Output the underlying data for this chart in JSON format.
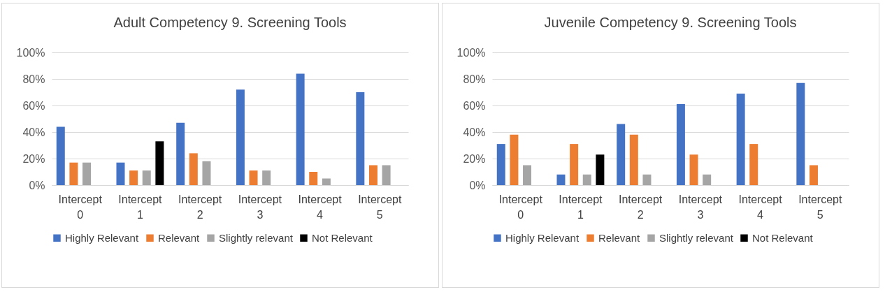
{
  "chart_data": [
    {
      "type": "bar",
      "title": "Adult Competency 9. Screening Tools",
      "categories": [
        "Intercept 0",
        "Intercept 1",
        "Intercept 2",
        "Intercept 3",
        "Intercept 4",
        "Intercept 5"
      ],
      "series": [
        {
          "name": "Highly Relevant",
          "color": "#4472c4",
          "values": [
            44,
            17,
            47,
            72,
            84,
            70
          ]
        },
        {
          "name": "Relevant",
          "color": "#ed7d31",
          "values": [
            17,
            11,
            24,
            11,
            10,
            15
          ]
        },
        {
          "name": "Slightly relevant",
          "color": "#a5a5a5",
          "values": [
            17,
            11,
            18,
            11,
            5,
            15
          ]
        },
        {
          "name": "Not Relevant",
          "color": "#000000",
          "values": [
            0,
            33,
            0,
            0,
            0,
            0
          ]
        }
      ],
      "ylim": [
        0,
        100
      ],
      "yticks": [
        {
          "value": 0,
          "label": "0%"
        },
        {
          "value": 20,
          "label": "20%"
        },
        {
          "value": 40,
          "label": "40%"
        },
        {
          "value": 60,
          "label": "60%"
        },
        {
          "value": 80,
          "label": "80%"
        },
        {
          "value": 100,
          "label": "100%"
        }
      ],
      "grid": "y",
      "legend": "bottom"
    },
    {
      "type": "bar",
      "title": "Juvenile Competency 9. Screening Tools",
      "categories": [
        "Intercept 0",
        "Intercept 1",
        "Intercept 2",
        "Intercept 3",
        "Intercept 4",
        "Intercept 5"
      ],
      "series": [
        {
          "name": "Highly Relevant",
          "color": "#4472c4",
          "values": [
            31,
            8,
            46,
            61,
            69,
            77
          ]
        },
        {
          "name": "Relevant",
          "color": "#ed7d31",
          "values": [
            38,
            31,
            38,
            23,
            31,
            15
          ]
        },
        {
          "name": "Slightly relevant",
          "color": "#a5a5a5",
          "values": [
            15,
            8,
            8,
            8,
            0,
            0
          ]
        },
        {
          "name": "Not Relevant",
          "color": "#000000",
          "values": [
            0,
            23,
            0,
            0,
            0,
            0
          ]
        }
      ],
      "ylim": [
        0,
        100
      ],
      "yticks": [
        {
          "value": 0,
          "label": "0%"
        },
        {
          "value": 20,
          "label": "20%"
        },
        {
          "value": 40,
          "label": "40%"
        },
        {
          "value": 60,
          "label": "60%"
        },
        {
          "value": 80,
          "label": "80%"
        },
        {
          "value": 100,
          "label": "100%"
        }
      ],
      "grid": "y",
      "legend": "bottom"
    }
  ]
}
